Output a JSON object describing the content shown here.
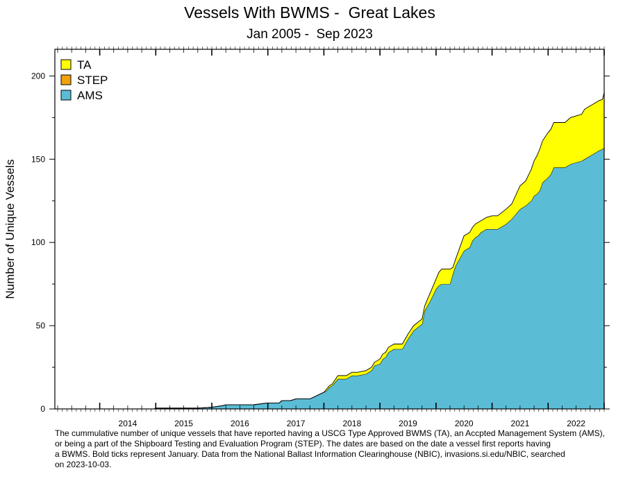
{
  "chart_data": {
    "type": "area",
    "title": "Vessels With BWMS -  Great Lakes",
    "subtitle": "Jan 2005 -  Sep 2023",
    "ylabel": "Number of Unique Vessels",
    "xlabel": "",
    "ylim": [
      0,
      216
    ],
    "yticks": [
      0,
      50,
      100,
      150,
      200
    ],
    "xlim": [
      2013.2,
      2023.0
    ],
    "xtick_labels": [
      "2014",
      "2015",
      "2016",
      "2017",
      "2018",
      "2019",
      "2020",
      "2021",
      "2022"
    ],
    "stacked": true,
    "legend_position": "top-left",
    "grid": false,
    "x": [
      2013.2,
      2014.97,
      2015.0,
      2015.25,
      2015.5,
      2015.75,
      2016.0,
      2016.2,
      2016.25,
      2016.35,
      2016.5,
      2016.75,
      2016.97,
      2017.0,
      2017.2,
      2017.25,
      2017.4,
      2017.5,
      2017.6,
      2017.75,
      2018.0,
      2018.05,
      2018.1,
      2018.15,
      2018.25,
      2018.3,
      2018.35,
      2018.4,
      2018.5,
      2018.6,
      2018.75,
      2018.85,
      2018.9,
      2019.0,
      2019.05,
      2019.1,
      2019.15,
      2019.25,
      2019.3,
      2019.35,
      2019.4,
      2019.5,
      2019.6,
      2019.75,
      2019.8,
      2019.85,
      2019.9,
      2020.0,
      2020.05,
      2020.1,
      2020.15,
      2020.2,
      2020.25,
      2020.3,
      2020.35,
      2020.5,
      2020.6,
      2020.65,
      2020.7,
      2020.75,
      2020.8,
      2020.9,
      2021.0,
      2021.05,
      2021.1,
      2021.25,
      2021.35,
      2021.5,
      2021.6,
      2021.7,
      2021.75,
      2021.8,
      2021.85,
      2021.9,
      2022.0,
      2022.05,
      2022.1,
      2022.2,
      2022.25,
      2022.3,
      2022.4,
      2022.5,
      2022.6,
      2022.65,
      2022.75,
      2022.8,
      2022.9,
      2022.97,
      2023.0
    ],
    "series": [
      {
        "name": "AMS",
        "color": "#5bbcd6",
        "values": [
          0,
          0,
          0.5,
          0.5,
          0.5,
          0.5,
          1,
          2,
          2.5,
          2.5,
          2.5,
          2.5,
          3.5,
          3.5,
          3.5,
          5,
          5,
          6,
          6,
          6,
          10,
          11,
          13,
          14,
          18,
          18,
          18,
          18,
          20,
          20,
          21,
          23,
          26,
          27,
          30,
          31,
          34,
          36,
          36,
          36,
          36,
          42,
          47,
          51,
          59,
          62,
          65,
          72,
          74,
          75,
          75,
          75,
          75,
          81,
          86,
          95,
          97,
          101,
          103,
          104,
          106,
          108,
          108,
          108,
          108,
          111,
          114,
          120,
          122,
          125,
          128,
          129,
          131,
          136,
          139,
          141,
          145,
          145,
          145,
          145,
          147,
          148,
          149,
          150,
          152,
          153,
          155,
          156,
          157
        ]
      },
      {
        "name": "STEP",
        "color": "#f0a30a",
        "values": [
          0,
          0,
          0,
          0,
          0,
          0,
          0,
          0,
          0,
          0,
          0,
          0,
          0,
          0,
          0,
          0,
          0,
          0,
          0,
          0,
          0,
          0,
          0,
          0,
          0,
          0,
          0,
          0,
          0,
          0,
          0,
          0,
          0,
          0,
          0,
          0,
          0,
          0,
          0,
          0,
          0,
          0,
          0,
          0,
          0,
          0,
          0,
          0,
          0,
          0,
          0,
          0,
          0,
          0,
          0,
          0,
          0,
          0,
          0,
          0,
          0,
          0,
          0,
          0,
          0,
          0,
          0,
          0,
          0,
          0,
          0,
          0,
          0,
          0,
          0,
          0,
          0,
          0,
          0,
          0,
          0,
          0,
          0,
          0,
          0,
          0,
          0,
          0,
          0
        ]
      },
      {
        "name": "TA",
        "color": "#ffff00",
        "values": [
          0,
          0,
          0,
          0,
          0,
          0,
          0,
          0,
          0,
          0,
          0,
          0,
          0,
          0,
          0,
          0,
          0,
          0,
          0,
          0,
          0,
          1,
          1,
          1,
          2,
          2,
          2,
          2,
          2,
          2,
          2,
          2,
          2,
          3,
          3,
          3,
          3,
          3,
          3,
          3,
          3,
          3,
          3,
          3,
          3,
          4,
          5,
          6,
          8,
          9,
          9,
          9,
          9,
          4,
          4,
          9,
          9,
          8,
          8,
          8,
          7,
          7,
          8,
          8,
          8,
          9,
          9,
          14,
          15,
          19,
          21,
          23,
          25,
          25,
          27,
          27,
          27,
          27,
          27,
          27,
          28,
          28,
          28,
          30,
          30,
          30,
          30,
          30,
          33
        ]
      }
    ]
  },
  "legend": [
    {
      "label": "TA",
      "color": "#ffff00"
    },
    {
      "label": "STEP",
      "color": "#f0a30a"
    },
    {
      "label": "AMS",
      "color": "#5bbcd6"
    }
  ],
  "caption": [
    "The cummulative number of unique vessels that have reported having a USCG Type Approved BWMS (TA), an Accpted Management System (AMS),",
    "or being a part of the Shipboard Testing and Evaluation Program (STEP). The dates are based on the date a vessel first reports having",
    "a BWMS. Bold ticks represent January. Data from the National Ballast Information Clearinghouse (NBIC), invasions.si.edu/NBIC, searched",
    "on 2023-10-03."
  ]
}
